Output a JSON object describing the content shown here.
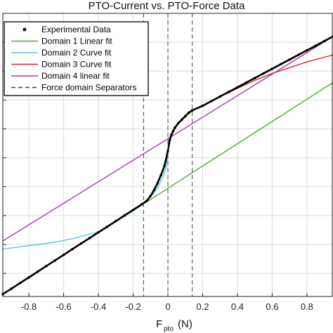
{
  "chart_data": {
    "type": "line",
    "title": "PTO-Current vs. PTO-Force Data",
    "xlabel_main": "F",
    "xlabel_sub": "pto",
    "xlabel_unit": "(N)",
    "ylabel": "",
    "xlim": [
      -0.95,
      0.95
    ],
    "ylim": [
      -1.2,
      1.25
    ],
    "xticks": [
      -0.8,
      -0.6,
      -0.4,
      -0.2,
      0,
      0.2,
      0.4,
      0.6,
      0.8
    ],
    "xtick_labels": [
      "-0.8",
      "-0.6",
      "-0.4",
      "-0.2",
      "0",
      "0.2",
      "0.4",
      "0.6",
      "0.8"
    ],
    "grid": true,
    "legend_position": "top-left",
    "separators": [
      -0.14,
      0,
      0.14
    ],
    "series": [
      {
        "name": "Experimental Data",
        "kind": "markers",
        "color": "#000000",
        "x": [
          -0.95,
          -0.9,
          -0.85,
          -0.8,
          -0.75,
          -0.7,
          -0.65,
          -0.6,
          -0.55,
          -0.5,
          -0.45,
          -0.4,
          -0.35,
          -0.3,
          -0.25,
          -0.2,
          -0.15,
          -0.12,
          -0.1,
          -0.08,
          -0.06,
          -0.04,
          -0.02,
          0,
          0.01,
          0.02,
          0.03,
          0.04,
          0.06,
          0.08,
          0.1,
          0.12,
          0.14,
          0.2,
          0.25,
          0.3,
          0.35,
          0.4,
          0.45,
          0.5,
          0.55,
          0.6,
          0.65,
          0.7,
          0.75,
          0.8,
          0.85,
          0.9,
          0.95
        ],
        "y": [
          -1.18,
          -1.132,
          -1.083,
          -1.035,
          -0.986,
          -0.937,
          -0.889,
          -0.84,
          -0.791,
          -0.742,
          -0.694,
          -0.645,
          -0.597,
          -0.548,
          -0.499,
          -0.451,
          -0.402,
          -0.37,
          -0.33,
          -0.28,
          -0.22,
          -0.15,
          -0.07,
          0.06,
          0.15,
          0.2,
          0.23,
          0.26,
          0.3,
          0.33,
          0.36,
          0.39,
          0.41,
          0.45,
          0.49,
          0.53,
          0.57,
          0.61,
          0.65,
          0.69,
          0.73,
          0.77,
          0.81,
          0.85,
          0.89,
          0.93,
          0.97,
          1.01,
          1.05
        ]
      },
      {
        "name": "Domain 1 Linear fit",
        "kind": "line",
        "color": "#4daf29",
        "x": [
          -0.95,
          0.95
        ],
        "y": [
          -1.18,
          0.652
        ]
      },
      {
        "name": "Domain 2 Curve fit",
        "kind": "line",
        "color": "#5bc3e0",
        "x": [
          -0.95,
          -0.85,
          -0.75,
          -0.65,
          -0.55,
          -0.45,
          -0.4,
          -0.3,
          -0.2,
          -0.14,
          -0.1,
          -0.06,
          -0.03,
          -0.01,
          0
        ],
        "y": [
          -0.79,
          -0.77,
          -0.75,
          -0.73,
          -0.7,
          -0.66,
          -0.645,
          -0.55,
          -0.46,
          -0.4,
          -0.34,
          -0.26,
          -0.17,
          -0.08,
          0.04
        ]
      },
      {
        "name": "Domain 3 Curve fit",
        "kind": "line",
        "color": "#d7262b",
        "x": [
          0,
          0.01,
          0.02,
          0.04,
          0.06,
          0.08,
          0.1,
          0.14,
          0.2,
          0.3,
          0.4,
          0.5,
          0.6,
          0.7,
          0.8,
          0.9,
          0.95
        ],
        "y": [
          0.04,
          0.14,
          0.19,
          0.25,
          0.3,
          0.33,
          0.36,
          0.41,
          0.45,
          0.53,
          0.6,
          0.67,
          0.73,
          0.78,
          0.83,
          0.87,
          0.89
        ]
      },
      {
        "name": "Domain 4 linear fit",
        "kind": "line",
        "color": "#a23ca8",
        "x": [
          -0.95,
          0.95
        ],
        "y": [
          -0.72,
          1.05
        ]
      },
      {
        "name": "Force domain Separators",
        "kind": "dashed",
        "color": "#444444"
      }
    ]
  }
}
